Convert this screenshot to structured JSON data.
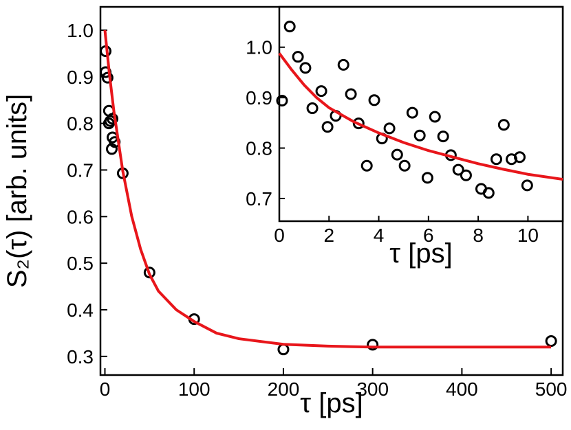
{
  "chart_data": [
    {
      "type": "scatter",
      "x_label": "τ [ps]",
      "y_label": "S₂(τ) [arb. units]",
      "xlim": [
        -5,
        513
      ],
      "ylim": [
        0.26,
        1.05
      ],
      "xticks": [
        0,
        100,
        200,
        300,
        400,
        500
      ],
      "yticks": [
        0.3,
        0.4,
        0.5,
        0.6,
        0.7,
        0.8,
        0.9,
        {
          "value": 1,
          "label": "1.0"
        }
      ],
      "marker_color": "#000000",
      "line_color": "#e8161b",
      "points": {
        "x": [
          0.8,
          0.8,
          3,
          4.5,
          6,
          8.5,
          4.5,
          8.5,
          11,
          7.7,
          20,
          50,
          100,
          200,
          300,
          500
        ],
        "y": [
          0.955,
          0.91,
          0.898,
          0.827,
          0.805,
          0.81,
          0.8,
          0.77,
          0.76,
          0.745,
          0.693,
          0.48,
          0.38,
          0.315,
          0.325,
          0.333
        ]
      },
      "fit": {
        "x": [
          0,
          5,
          10,
          20,
          30,
          40,
          50,
          60,
          80,
          100,
          125,
          150,
          200,
          250,
          300,
          400,
          500
        ],
        "y": [
          1.0,
          0.907,
          0.827,
          0.698,
          0.601,
          0.53,
          0.476,
          0.44,
          0.4,
          0.375,
          0.35,
          0.338,
          0.326,
          0.322,
          0.32,
          0.32,
          0.32
        ]
      }
    },
    {
      "type": "scatter",
      "x_label": "τ [ps]",
      "xlim": [
        0,
        11.4
      ],
      "ylim": [
        0.655,
        1.08
      ],
      "xticks": [
        0,
        2,
        4,
        6,
        8,
        10
      ],
      "yticks": [
        0.7,
        0.8,
        0.9,
        {
          "value": 1,
          "label": "1.0"
        }
      ],
      "marker_color": "#000000",
      "line_color": "#e8161b",
      "points": {
        "x": [
          0.11,
          0.42,
          0.75,
          1.05,
          1.33,
          1.69,
          1.94,
          2.27,
          2.58,
          2.88,
          3.19,
          3.52,
          3.82,
          4.13,
          4.43,
          4.74,
          5.04,
          5.35,
          5.65,
          5.96,
          6.26,
          6.59,
          6.9,
          7.2,
          7.51,
          8.12,
          8.42,
          8.73,
          9.03,
          9.34,
          9.67,
          9.97
        ],
        "y": [
          0.894,
          1.041,
          0.981,
          0.959,
          0.879,
          0.913,
          0.842,
          0.864,
          0.965,
          0.907,
          0.849,
          0.765,
          0.895,
          0.819,
          0.839,
          0.787,
          0.765,
          0.87,
          0.825,
          0.741,
          0.862,
          0.823,
          0.786,
          0.757,
          0.746,
          0.719,
          0.711,
          0.778,
          0.846,
          0.778,
          0.782,
          0.726
        ]
      },
      "fit": {
        "x": [
          0,
          0.5,
          1,
          1.5,
          2,
          3,
          4,
          5,
          6,
          7,
          8,
          9,
          10,
          11.4
        ],
        "y": [
          0.988,
          0.955,
          0.925,
          0.9,
          0.88,
          0.852,
          0.83,
          0.811,
          0.795,
          0.782,
          0.769,
          0.758,
          0.748,
          0.738
        ]
      }
    }
  ]
}
